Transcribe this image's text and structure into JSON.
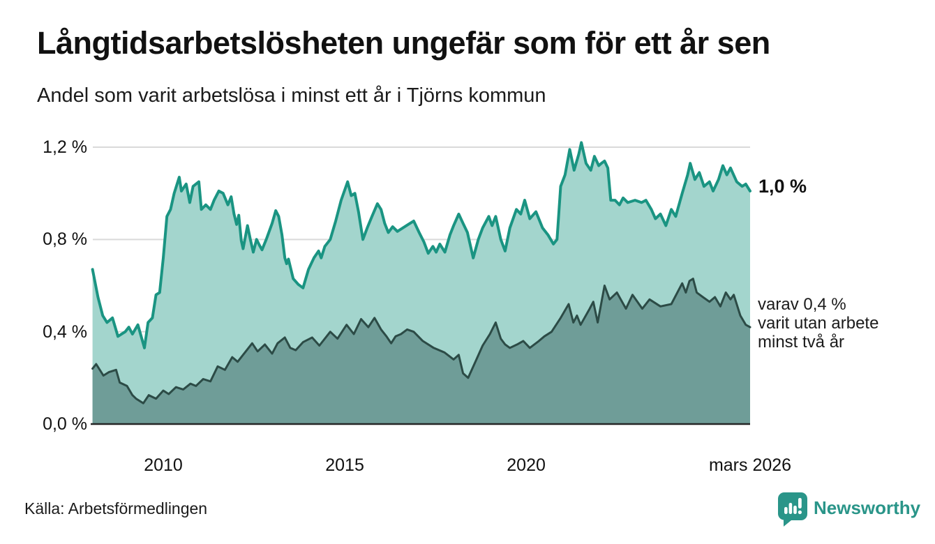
{
  "header": {
    "title": "Långtidsarbetslösheten ungefär som för ett år sen",
    "subtitle": "Andel som varit arbetslösa i minst ett år i Tjörns kommun"
  },
  "chart_data": {
    "type": "area",
    "title": "Långtidsarbetslösheten ungefär som för ett år sen",
    "subtitle": "Andel som varit arbetslösa i minst ett år i Tjörns kommun",
    "x_domain": [
      2008.0,
      2026.17
    ],
    "y_domain": [
      0,
      1.2
    ],
    "grid": true,
    "legend_position": "end-of-line-labels",
    "colors": {
      "grid": "#d9d9d9",
      "axis": "#262626",
      "background": "#ffffff"
    },
    "y_ticks": [
      {
        "v": 0.0,
        "label": "0,0 %"
      },
      {
        "v": 0.4,
        "label": "0,4 %"
      },
      {
        "v": 0.8,
        "label": "0,8 %"
      },
      {
        "v": 1.2,
        "label": "1,2 %"
      }
    ],
    "x_ticks": [
      {
        "v": 2010,
        "label": "2010"
      },
      {
        "v": 2015,
        "label": "2015"
      },
      {
        "v": 2020,
        "label": "2020"
      },
      {
        "v": 2026.17,
        "label": "mars 2026"
      }
    ],
    "series": [
      {
        "name": "Andel som varit arbetslösa i minst ett år",
        "line_color": "#1a9482",
        "fill_color": "#a3d5cd",
        "line_width": 4,
        "end_label": "1,0 %",
        "points": [
          [
            2008.05,
            0.67
          ],
          [
            2008.2,
            0.55
          ],
          [
            2008.33,
            0.47
          ],
          [
            2008.45,
            0.44
          ],
          [
            2008.6,
            0.46
          ],
          [
            2008.75,
            0.38
          ],
          [
            2008.95,
            0.4
          ],
          [
            2009.05,
            0.42
          ],
          [
            2009.15,
            0.39
          ],
          [
            2009.3,
            0.43
          ],
          [
            2009.48,
            0.33
          ],
          [
            2009.58,
            0.44
          ],
          [
            2009.7,
            0.46
          ],
          [
            2009.8,
            0.56
          ],
          [
            2009.9,
            0.57
          ],
          [
            2010.0,
            0.72
          ],
          [
            2010.1,
            0.9
          ],
          [
            2010.2,
            0.93
          ],
          [
            2010.3,
            1.0
          ],
          [
            2010.44,
            1.07
          ],
          [
            2010.5,
            1.01
          ],
          [
            2010.63,
            1.04
          ],
          [
            2010.73,
            0.96
          ],
          [
            2010.82,
            1.03
          ],
          [
            2010.98,
            1.05
          ],
          [
            2011.05,
            0.93
          ],
          [
            2011.17,
            0.95
          ],
          [
            2011.3,
            0.93
          ],
          [
            2011.4,
            0.97
          ],
          [
            2011.53,
            1.01
          ],
          [
            2011.65,
            1.0
          ],
          [
            2011.78,
            0.95
          ],
          [
            2011.87,
            0.985
          ],
          [
            2011.95,
            0.91
          ],
          [
            2012.02,
            0.865
          ],
          [
            2012.08,
            0.905
          ],
          [
            2012.15,
            0.795
          ],
          [
            2012.2,
            0.76
          ],
          [
            2012.32,
            0.86
          ],
          [
            2012.4,
            0.8
          ],
          [
            2012.48,
            0.745
          ],
          [
            2012.57,
            0.8
          ],
          [
            2012.65,
            0.775
          ],
          [
            2012.72,
            0.755
          ],
          [
            2012.85,
            0.805
          ],
          [
            2013.0,
            0.87
          ],
          [
            2013.1,
            0.925
          ],
          [
            2013.18,
            0.9
          ],
          [
            2013.27,
            0.82
          ],
          [
            2013.35,
            0.72
          ],
          [
            2013.4,
            0.695
          ],
          [
            2013.45,
            0.715
          ],
          [
            2013.58,
            0.63
          ],
          [
            2013.72,
            0.605
          ],
          [
            2013.85,
            0.59
          ],
          [
            2014.0,
            0.67
          ],
          [
            2014.15,
            0.72
          ],
          [
            2014.28,
            0.75
          ],
          [
            2014.35,
            0.72
          ],
          [
            2014.45,
            0.77
          ],
          [
            2014.6,
            0.8
          ],
          [
            2014.75,
            0.88
          ],
          [
            2014.9,
            0.97
          ],
          [
            2015.08,
            1.05
          ],
          [
            2015.18,
            0.99
          ],
          [
            2015.28,
            1.0
          ],
          [
            2015.38,
            0.92
          ],
          [
            2015.5,
            0.8
          ],
          [
            2015.62,
            0.85
          ],
          [
            2015.75,
            0.9
          ],
          [
            2015.9,
            0.955
          ],
          [
            2016.0,
            0.93
          ],
          [
            2016.1,
            0.87
          ],
          [
            2016.2,
            0.83
          ],
          [
            2016.32,
            0.855
          ],
          [
            2016.45,
            0.835
          ],
          [
            2016.6,
            0.85
          ],
          [
            2016.75,
            0.865
          ],
          [
            2016.9,
            0.88
          ],
          [
            2017.05,
            0.83
          ],
          [
            2017.18,
            0.79
          ],
          [
            2017.3,
            0.74
          ],
          [
            2017.43,
            0.77
          ],
          [
            2017.52,
            0.745
          ],
          [
            2017.62,
            0.78
          ],
          [
            2017.76,
            0.745
          ],
          [
            2017.9,
            0.82
          ],
          [
            2018.0,
            0.86
          ],
          [
            2018.14,
            0.91
          ],
          [
            2018.26,
            0.87
          ],
          [
            2018.38,
            0.83
          ],
          [
            2018.54,
            0.72
          ],
          [
            2018.68,
            0.8
          ],
          [
            2018.8,
            0.85
          ],
          [
            2018.97,
            0.9
          ],
          [
            2019.06,
            0.86
          ],
          [
            2019.16,
            0.9
          ],
          [
            2019.3,
            0.8
          ],
          [
            2019.42,
            0.75
          ],
          [
            2019.55,
            0.85
          ],
          [
            2019.73,
            0.93
          ],
          [
            2019.85,
            0.91
          ],
          [
            2019.96,
            0.97
          ],
          [
            2020.1,
            0.89
          ],
          [
            2020.27,
            0.92
          ],
          [
            2020.45,
            0.85
          ],
          [
            2020.6,
            0.82
          ],
          [
            2020.75,
            0.78
          ],
          [
            2020.85,
            0.8
          ],
          [
            2020.95,
            1.03
          ],
          [
            2021.07,
            1.08
          ],
          [
            2021.2,
            1.19
          ],
          [
            2021.32,
            1.1
          ],
          [
            2021.45,
            1.17
          ],
          [
            2021.52,
            1.22
          ],
          [
            2021.65,
            1.13
          ],
          [
            2021.78,
            1.1
          ],
          [
            2021.88,
            1.16
          ],
          [
            2022.0,
            1.12
          ],
          [
            2022.07,
            1.13
          ],
          [
            2022.16,
            1.14
          ],
          [
            2022.25,
            1.11
          ],
          [
            2022.33,
            0.97
          ],
          [
            2022.45,
            0.97
          ],
          [
            2022.57,
            0.95
          ],
          [
            2022.67,
            0.98
          ],
          [
            2022.8,
            0.96
          ],
          [
            2023.0,
            0.97
          ],
          [
            2023.18,
            0.96
          ],
          [
            2023.3,
            0.97
          ],
          [
            2023.45,
            0.93
          ],
          [
            2023.56,
            0.89
          ],
          [
            2023.7,
            0.91
          ],
          [
            2023.85,
            0.86
          ],
          [
            2024.0,
            0.93
          ],
          [
            2024.12,
            0.9
          ],
          [
            2024.3,
            1.0
          ],
          [
            2024.45,
            1.08
          ],
          [
            2024.52,
            1.13
          ],
          [
            2024.65,
            1.06
          ],
          [
            2024.77,
            1.09
          ],
          [
            2024.9,
            1.03
          ],
          [
            2025.05,
            1.05
          ],
          [
            2025.15,
            1.01
          ],
          [
            2025.3,
            1.06
          ],
          [
            2025.42,
            1.12
          ],
          [
            2025.53,
            1.08
          ],
          [
            2025.63,
            1.11
          ],
          [
            2025.8,
            1.05
          ],
          [
            2025.95,
            1.03
          ],
          [
            2026.05,
            1.04
          ],
          [
            2026.17,
            1.01
          ]
        ]
      },
      {
        "name": "varav utan arbete minst två år",
        "line_color": "#2c4b46",
        "fill_color": "#6f9d98",
        "line_width": 3,
        "end_label_lines": [
          "varav 0,4 %",
          "varit utan arbete",
          "minst två år"
        ],
        "points": [
          [
            2008.05,
            0.24
          ],
          [
            2008.15,
            0.26
          ],
          [
            2008.35,
            0.21
          ],
          [
            2008.5,
            0.225
          ],
          [
            2008.7,
            0.235
          ],
          [
            2008.8,
            0.18
          ],
          [
            2009.0,
            0.165
          ],
          [
            2009.15,
            0.125
          ],
          [
            2009.25,
            0.11
          ],
          [
            2009.45,
            0.09
          ],
          [
            2009.6,
            0.125
          ],
          [
            2009.8,
            0.11
          ],
          [
            2010.0,
            0.145
          ],
          [
            2010.15,
            0.13
          ],
          [
            2010.35,
            0.16
          ],
          [
            2010.55,
            0.15
          ],
          [
            2010.75,
            0.175
          ],
          [
            2010.9,
            0.165
          ],
          [
            2011.1,
            0.195
          ],
          [
            2011.3,
            0.185
          ],
          [
            2011.5,
            0.25
          ],
          [
            2011.7,
            0.235
          ],
          [
            2011.9,
            0.29
          ],
          [
            2012.05,
            0.27
          ],
          [
            2012.25,
            0.31
          ],
          [
            2012.45,
            0.35
          ],
          [
            2012.6,
            0.315
          ],
          [
            2012.8,
            0.345
          ],
          [
            2013.0,
            0.305
          ],
          [
            2013.15,
            0.35
          ],
          [
            2013.35,
            0.375
          ],
          [
            2013.5,
            0.33
          ],
          [
            2013.65,
            0.32
          ],
          [
            2013.85,
            0.355
          ],
          [
            2014.1,
            0.375
          ],
          [
            2014.3,
            0.34
          ],
          [
            2014.6,
            0.4
          ],
          [
            2014.8,
            0.37
          ],
          [
            2015.05,
            0.43
          ],
          [
            2015.25,
            0.39
          ],
          [
            2015.45,
            0.455
          ],
          [
            2015.65,
            0.42
          ],
          [
            2015.82,
            0.46
          ],
          [
            2016.0,
            0.41
          ],
          [
            2016.15,
            0.38
          ],
          [
            2016.28,
            0.35
          ],
          [
            2016.4,
            0.38
          ],
          [
            2016.55,
            0.39
          ],
          [
            2016.72,
            0.41
          ],
          [
            2016.9,
            0.4
          ],
          [
            2017.15,
            0.36
          ],
          [
            2017.45,
            0.33
          ],
          [
            2017.75,
            0.31
          ],
          [
            2018.0,
            0.28
          ],
          [
            2018.14,
            0.3
          ],
          [
            2018.26,
            0.22
          ],
          [
            2018.4,
            0.2
          ],
          [
            2018.6,
            0.27
          ],
          [
            2018.8,
            0.34
          ],
          [
            2019.0,
            0.39
          ],
          [
            2019.16,
            0.44
          ],
          [
            2019.3,
            0.37
          ],
          [
            2019.42,
            0.345
          ],
          [
            2019.55,
            0.33
          ],
          [
            2019.75,
            0.345
          ],
          [
            2019.92,
            0.36
          ],
          [
            2020.1,
            0.33
          ],
          [
            2020.35,
            0.36
          ],
          [
            2020.5,
            0.38
          ],
          [
            2020.7,
            0.4
          ],
          [
            2020.95,
            0.46
          ],
          [
            2021.17,
            0.52
          ],
          [
            2021.3,
            0.44
          ],
          [
            2021.4,
            0.47
          ],
          [
            2021.5,
            0.43
          ],
          [
            2021.75,
            0.5
          ],
          [
            2021.85,
            0.53
          ],
          [
            2021.97,
            0.44
          ],
          [
            2022.16,
            0.6
          ],
          [
            2022.3,
            0.54
          ],
          [
            2022.5,
            0.57
          ],
          [
            2022.75,
            0.5
          ],
          [
            2022.93,
            0.56
          ],
          [
            2023.2,
            0.5
          ],
          [
            2023.4,
            0.54
          ],
          [
            2023.7,
            0.51
          ],
          [
            2024.0,
            0.52
          ],
          [
            2024.2,
            0.58
          ],
          [
            2024.3,
            0.61
          ],
          [
            2024.4,
            0.57
          ],
          [
            2024.5,
            0.62
          ],
          [
            2024.6,
            0.63
          ],
          [
            2024.7,
            0.57
          ],
          [
            2024.87,
            0.55
          ],
          [
            2025.05,
            0.53
          ],
          [
            2025.2,
            0.55
          ],
          [
            2025.35,
            0.51
          ],
          [
            2025.5,
            0.57
          ],
          [
            2025.63,
            0.54
          ],
          [
            2025.72,
            0.56
          ],
          [
            2025.9,
            0.47
          ],
          [
            2026.05,
            0.43
          ],
          [
            2026.17,
            0.42
          ]
        ]
      }
    ]
  },
  "footer": {
    "source": "Källa: Arbetsförmedlingen",
    "brand": "Newsworthy"
  }
}
